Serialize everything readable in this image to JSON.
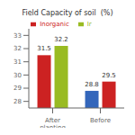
{
  "chart_data": {
    "type": "bar",
    "title": "Field Capacity of soil  (%)",
    "categories": [
      "After\nplanting",
      "Before"
    ],
    "series": [
      {
        "name": "Inorganic",
        "color": "#cc2222",
        "colors": [
          "#cc2222",
          "#3366bb"
        ],
        "values": [
          31.5,
          28.8
        ]
      },
      {
        "name": "Ir",
        "color": "#99bb22",
        "colors": [
          "#99bb22",
          "#cc2222"
        ],
        "values": [
          32.2,
          29.5
        ]
      }
    ],
    "ylim": [
      27.5,
      33.5
    ],
    "yticks": [
      28,
      29,
      30,
      31,
      32,
      33
    ],
    "grid": false,
    "legend": "top",
    "data_labels": true
  }
}
